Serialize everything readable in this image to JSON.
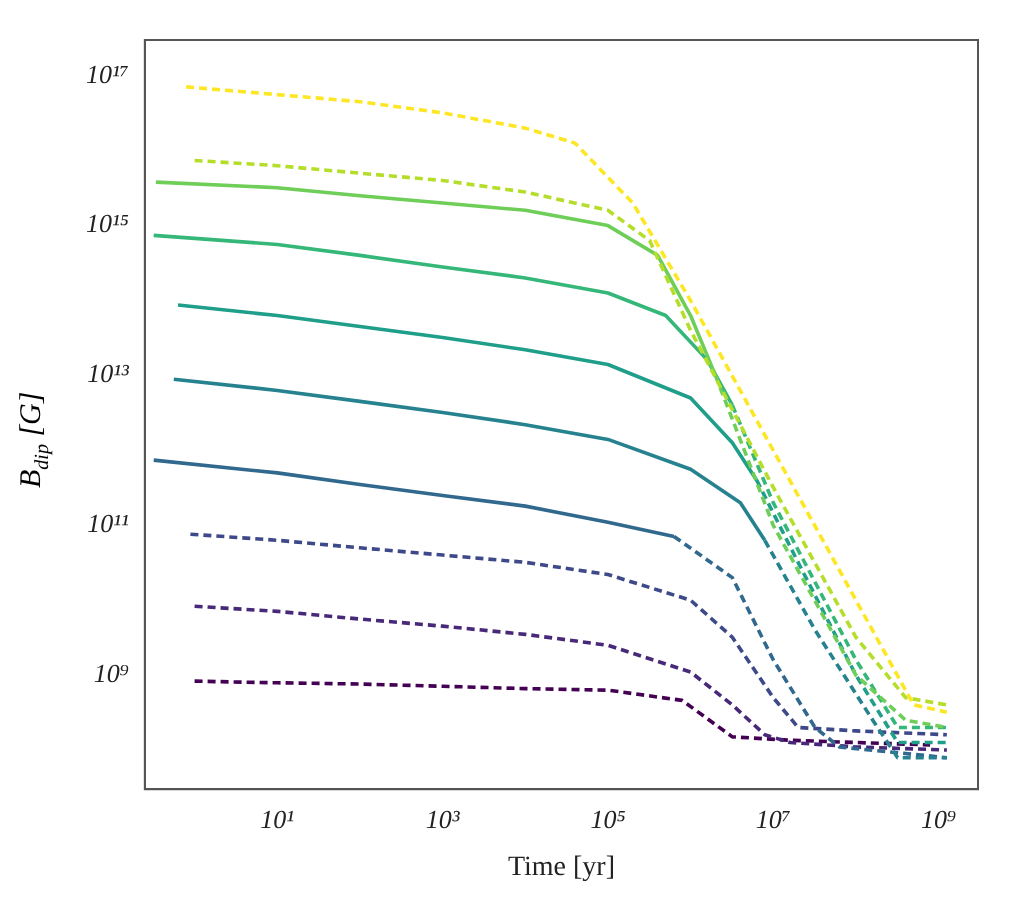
{
  "chart_data": {
    "type": "line",
    "xlabel": "Time [yr]",
    "ylabel": "B$_{dip}$ [G]",
    "log": "xy",
    "grid": false,
    "legend": false,
    "marker": "none",
    "xlim": [
      0.25,
      3000000000.0
    ],
    "xticks": [
      {
        "value": 10,
        "label": "10¹"
      },
      {
        "value": 1000,
        "label": "10³"
      },
      {
        "value": 100000,
        "label": "10⁵"
      },
      {
        "value": 10000000,
        "label": "10⁷"
      },
      {
        "value": 1000000000,
        "label": "10⁹"
      }
    ],
    "ylim": [
      30000000.0,
      3e+17
    ],
    "yticks": [
      {
        "value": 1000000000.0,
        "label": "10⁹"
      },
      {
        "value": 100000000000.0,
        "label": "10¹¹"
      },
      {
        "value": 10000000000000.0,
        "label": "10¹³"
      },
      {
        "value": 1000000000000000.0,
        "label": "10¹⁵"
      },
      {
        "value": 1e+17,
        "label": "10¹⁷"
      }
    ],
    "series": [
      {
        "color": "#fde725",
        "line_style": "dashed",
        "x": [
          0.79,
          10,
          100,
          1000.0,
          10000.0,
          40000.0,
          200000.0,
          1000000.0,
          10000000.0,
          100000000.0,
          500000000.0,
          1260000000.0
        ],
        "values": [
          7.1e+16,
          5.6e+16,
          4.5e+16,
          3.2e+16,
          2e+16,
          1.26e+16,
          2000000000000000.0,
          100000000000000.0,
          1000000000000.0,
          10000000000.0,
          400000000.0,
          320000000.0
        ]
      },
      {
        "color": "#b5de2b",
        "line_style": "dashed",
        "x": [
          1,
          10,
          100,
          1000.0,
          10000.0,
          100000.0,
          320000.0,
          1000000.0,
          10000000.0,
          100000000.0,
          400000000.0,
          1260000000.0
        ],
        "values": [
          7400000000000000.0,
          6300000000000000.0,
          5000000000000000.0,
          4000000000000000.0,
          2800000000000000.0,
          1600000000000000.0,
          630000000000000.0,
          40000000000000.0,
          320000000000.0,
          3200000000.0,
          500000000.0,
          400000000.0
        ]
      },
      {
        "color": "#6ece58",
        "line_style": "solid",
        "x": [
          0.34,
          10,
          100,
          1000.0,
          10000.0,
          100000.0,
          400000.0,
          1000000.0,
          2000000.0
        ],
        "values": [
          3800000000000000.0,
          3200000000000000.0,
          2500000000000000.0,
          2000000000000000.0,
          1600000000000000.0,
          1000000000000000.0,
          400000000000000.0,
          63000000000000.0,
          10000000000000.0
        ]
      },
      {
        "color": "#6ece58",
        "line_style": "dashed",
        "x": [
          2000000.0,
          10000000.0,
          100000000.0,
          400000000.0,
          1260000000.0
        ],
        "values": [
          10000000000000.0,
          100000000000.0,
          1000000000.0,
          250000000.0,
          200000000.0
        ]
      },
      {
        "color": "#35b779",
        "line_style": "solid",
        "x": [
          0.32,
          10,
          100,
          1000.0,
          10000.0,
          100000.0,
          500000.0,
          1600000.0,
          3200000.0
        ],
        "values": [
          740000000000000.0,
          560000000000000.0,
          400000000000000.0,
          280000000000000.0,
          200000000000000.0,
          126000000000000.0,
          63000000000000.0,
          16000000000000.0,
          4000000000000.0
        ]
      },
      {
        "color": "#35b779",
        "line_style": "dashed",
        "x": [
          3200000.0,
          10000000.0,
          100000000.0,
          320000000.0,
          1260000000.0
        ],
        "values": [
          4000000000000.0,
          200000000000.0,
          1600000000.0,
          200000000.0,
          200000000.0
        ]
      },
      {
        "color": "#1f9e89",
        "line_style": "solid",
        "x": [
          0.63,
          10,
          100,
          1000.0,
          10000.0,
          100000.0,
          1000000.0,
          3200000.0,
          6300000.0
        ],
        "values": [
          87000000000000.0,
          63000000000000.0,
          45000000000000.0,
          32000000000000.0,
          22000000000000.0,
          14000000000000.0,
          5000000000000.0,
          1260000000000.0,
          400000000000.0
        ]
      },
      {
        "color": "#1f9e89",
        "line_style": "dashed",
        "x": [
          6300000.0,
          20000000.0,
          100000000.0,
          320000000.0,
          1260000000.0
        ],
        "values": [
          400000000000.0,
          32000000000.0,
          1000000000.0,
          126000000.0,
          126000000.0
        ]
      },
      {
        "color": "#26828e",
        "line_style": "solid",
        "x": [
          0.56,
          10,
          100,
          1000.0,
          10000.0,
          100000.0,
          1000000.0,
          4000000.0,
          7900000.0
        ],
        "values": [
          8900000000000.0,
          6300000000000.0,
          4500000000000.0,
          3200000000000.0,
          2200000000000.0,
          1400000000000.0,
          560000000000.0,
          200000000000.0,
          63000000000.0
        ]
      },
      {
        "color": "#26828e",
        "line_style": "dashed",
        "x": [
          7900000.0,
          32000000.0,
          160000000.0,
          320000000.0,
          1260000000.0
        ],
        "values": [
          63000000000.0,
          4000000000.0,
          250000000.0,
          79000000.0,
          79000000.0
        ]
      },
      {
        "color": "#31688e",
        "line_style": "solid",
        "x": [
          0.32,
          10,
          100,
          1000.0,
          10000.0,
          100000.0,
          630000.0
        ],
        "values": [
          740000000000.0,
          500000000000.0,
          350000000000.0,
          250000000000.0,
          180000000000.0,
          110000000000.0,
          71000000000.0
        ]
      },
      {
        "color": "#31688e",
        "line_style": "dashed",
        "x": [
          630000.0,
          3200000.0,
          10000000.0,
          32000000.0,
          63000000.0,
          1260000000.0
        ],
        "values": [
          71000000000.0,
          20000000000.0,
          1600000000.0,
          200000000.0,
          110000000.0,
          79000000.0
        ]
      },
      {
        "color": "#3e4989",
        "line_style": "dashed",
        "x": [
          0.89,
          10,
          100,
          1000.0,
          10000.0,
          100000.0,
          1000000.0,
          3200000.0,
          10000000.0,
          20000000.0,
          100000000.0,
          1260000000.0
        ],
        "values": [
          76000000000.0,
          63000000000.0,
          50000000000.0,
          40000000000.0,
          32000000000.0,
          22000000000.0,
          10000000000.0,
          3200000000.0,
          500000000.0,
          200000000.0,
          180000000.0,
          160000000.0
        ]
      },
      {
        "color": "#482878",
        "line_style": "dashed",
        "x": [
          1,
          10,
          100,
          1000.0,
          10000.0,
          100000.0,
          1000000.0,
          3200000.0,
          7900000.0,
          16000000.0,
          100000000.0,
          1260000000.0
        ],
        "values": [
          8300000000.0,
          7100000000.0,
          5600000000.0,
          4500000000.0,
          3500000000.0,
          2500000000.0,
          1100000000.0,
          400000000.0,
          160000000.0,
          126000000.0,
          110000000.0,
          100000000.0
        ]
      },
      {
        "color": "#440154",
        "line_style": "dashed",
        "x": [
          1,
          10,
          100,
          1000.0,
          10000.0,
          100000.0,
          790000.0,
          3200000.0,
          16000000.0,
          100000000.0,
          790000000.0
        ],
        "values": [
          830000000.0,
          790000000.0,
          760000000.0,
          710000000.0,
          660000000.0,
          630000000.0,
          460000000.0,
          150000000.0,
          135000000.0,
          126000000.0,
          117000000.0
        ]
      }
    ]
  }
}
